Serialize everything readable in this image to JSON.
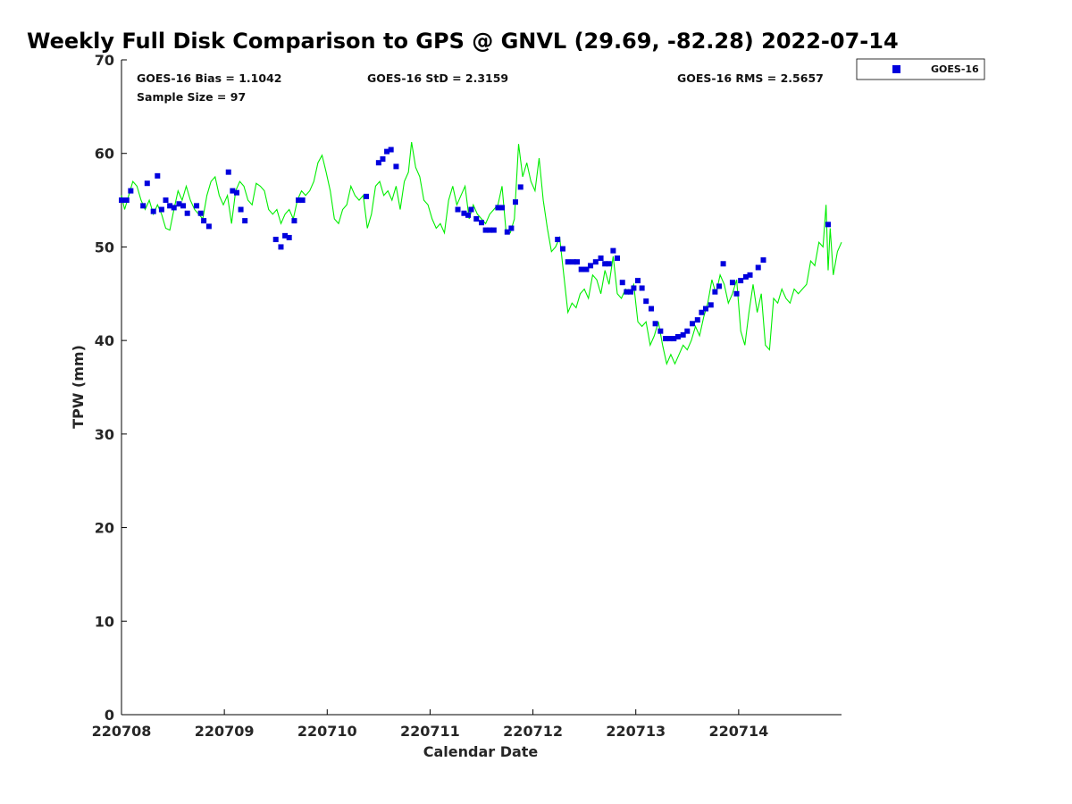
{
  "chart_data": {
    "type": "scatter",
    "title": "Weekly Full Disk Comparison to GPS @ GNVL (29.69, -82.28) 2022-07-14",
    "xlabel": "Calendar Date",
    "ylabel": "TPW (mm)",
    "xlim": [
      0,
      7
    ],
    "ylim": [
      0,
      70
    ],
    "x_ticks": [
      {
        "value": 0,
        "label": "220708"
      },
      {
        "value": 1,
        "label": "220709"
      },
      {
        "value": 2,
        "label": "220710"
      },
      {
        "value": 3,
        "label": "220711"
      },
      {
        "value": 4,
        "label": "220712"
      },
      {
        "value": 5,
        "label": "220713"
      },
      {
        "value": 6,
        "label": "220714"
      }
    ],
    "y_ticks": [
      0,
      10,
      20,
      30,
      40,
      50,
      60,
      70
    ],
    "grid": false,
    "legend": {
      "position": "outside-top-right",
      "entries": [
        {
          "name": "GOES-16",
          "color": "#0000dd",
          "marker": "square"
        }
      ]
    },
    "stats": {
      "bias": "GOES-16 Bias = 1.1042",
      "std": "GOES-16 StD = 2.3159",
      "rms": "GOES-16 RMS = 2.5657",
      "sample": "Sample Size = 97"
    },
    "series": [
      {
        "name": "GOES-16",
        "kind": "scatter",
        "color": "#0000dd",
        "points": [
          [
            0.0,
            55.0
          ],
          [
            0.05,
            55.0
          ],
          [
            0.09,
            56.0
          ],
          [
            0.21,
            54.4
          ],
          [
            0.25,
            56.8
          ],
          [
            0.31,
            53.8
          ],
          [
            0.35,
            57.6
          ],
          [
            0.39,
            54.0
          ],
          [
            0.43,
            55.0
          ],
          [
            0.47,
            54.4
          ],
          [
            0.51,
            54.2
          ],
          [
            0.56,
            54.6
          ],
          [
            0.6,
            54.4
          ],
          [
            0.64,
            53.6
          ],
          [
            0.73,
            54.4
          ],
          [
            0.77,
            53.6
          ],
          [
            0.8,
            52.8
          ],
          [
            0.85,
            52.2
          ],
          [
            1.04,
            58.0
          ],
          [
            1.08,
            56.0
          ],
          [
            1.12,
            55.8
          ],
          [
            1.16,
            54.0
          ],
          [
            1.2,
            52.8
          ],
          [
            1.5,
            50.8
          ],
          [
            1.55,
            50.0
          ],
          [
            1.59,
            51.2
          ],
          [
            1.63,
            51.0
          ],
          [
            1.68,
            52.8
          ],
          [
            1.72,
            55.0
          ],
          [
            1.76,
            55.0
          ],
          [
            2.38,
            55.4
          ],
          [
            2.5,
            59.0
          ],
          [
            2.54,
            59.4
          ],
          [
            2.58,
            60.2
          ],
          [
            2.62,
            60.4
          ],
          [
            2.67,
            58.6
          ],
          [
            3.27,
            54.0
          ],
          [
            3.33,
            53.6
          ],
          [
            3.37,
            53.4
          ],
          [
            3.4,
            54.0
          ],
          [
            3.45,
            53.0
          ],
          [
            3.5,
            52.6
          ],
          [
            3.54,
            51.8
          ],
          [
            3.58,
            51.8
          ],
          [
            3.62,
            51.8
          ],
          [
            3.66,
            54.2
          ],
          [
            3.7,
            54.2
          ],
          [
            3.75,
            51.6
          ],
          [
            3.79,
            52.0
          ],
          [
            3.83,
            54.8
          ],
          [
            3.88,
            56.4
          ],
          [
            4.24,
            50.8
          ],
          [
            4.29,
            49.8
          ],
          [
            4.34,
            48.4
          ],
          [
            4.39,
            48.4
          ],
          [
            4.43,
            48.4
          ],
          [
            4.47,
            47.6
          ],
          [
            4.52,
            47.6
          ],
          [
            4.56,
            48.0
          ],
          [
            4.61,
            48.4
          ],
          [
            4.66,
            48.8
          ],
          [
            4.7,
            48.2
          ],
          [
            4.74,
            48.2
          ],
          [
            4.78,
            49.6
          ],
          [
            4.82,
            48.8
          ],
          [
            4.87,
            46.2
          ],
          [
            4.91,
            45.2
          ],
          [
            4.95,
            45.2
          ],
          [
            4.98,
            45.6
          ],
          [
            5.02,
            46.4
          ],
          [
            5.06,
            45.6
          ],
          [
            5.1,
            44.2
          ],
          [
            5.15,
            43.4
          ],
          [
            5.19,
            41.8
          ],
          [
            5.24,
            41.0
          ],
          [
            5.29,
            40.2
          ],
          [
            5.33,
            40.2
          ],
          [
            5.37,
            40.2
          ],
          [
            5.41,
            40.4
          ],
          [
            5.46,
            40.6
          ],
          [
            5.5,
            41.0
          ],
          [
            5.55,
            41.8
          ],
          [
            5.6,
            42.2
          ],
          [
            5.64,
            43.0
          ],
          [
            5.68,
            43.4
          ],
          [
            5.73,
            43.8
          ],
          [
            5.77,
            45.2
          ],
          [
            5.81,
            45.8
          ],
          [
            5.85,
            48.2
          ],
          [
            5.94,
            46.2
          ],
          [
            5.98,
            45.0
          ],
          [
            6.02,
            46.4
          ],
          [
            6.07,
            46.8
          ],
          [
            6.11,
            47.0
          ],
          [
            6.19,
            47.8
          ],
          [
            6.24,
            48.6
          ],
          [
            6.87,
            52.4
          ]
        ]
      },
      {
        "name": "",
        "kind": "line",
        "color": "#00ee00",
        "points": [
          [
            0.0,
            55.5
          ],
          [
            0.03,
            54.0
          ],
          [
            0.07,
            55.5
          ],
          [
            0.11,
            57.0
          ],
          [
            0.15,
            56.5
          ],
          [
            0.19,
            55.0
          ],
          [
            0.23,
            54.0
          ],
          [
            0.27,
            55.0
          ],
          [
            0.31,
            53.5
          ],
          [
            0.35,
            54.5
          ],
          [
            0.39,
            53.5
          ],
          [
            0.43,
            52.0
          ],
          [
            0.47,
            51.8
          ],
          [
            0.51,
            54.0
          ],
          [
            0.55,
            56.0
          ],
          [
            0.59,
            55.0
          ],
          [
            0.63,
            56.5
          ],
          [
            0.67,
            55.0
          ],
          [
            0.71,
            54.0
          ],
          [
            0.75,
            53.5
          ],
          [
            0.79,
            53.0
          ],
          [
            0.83,
            55.5
          ],
          [
            0.87,
            57.0
          ],
          [
            0.91,
            57.5
          ],
          [
            0.95,
            55.5
          ],
          [
            0.99,
            54.5
          ],
          [
            1.03,
            55.5
          ],
          [
            1.07,
            52.5
          ],
          [
            1.11,
            56.0
          ],
          [
            1.15,
            57.0
          ],
          [
            1.19,
            56.5
          ],
          [
            1.23,
            55.0
          ],
          [
            1.27,
            54.5
          ],
          [
            1.31,
            56.8
          ],
          [
            1.35,
            56.5
          ],
          [
            1.39,
            56.0
          ],
          [
            1.43,
            54.0
          ],
          [
            1.47,
            53.5
          ],
          [
            1.51,
            54.0
          ],
          [
            1.55,
            52.5
          ],
          [
            1.59,
            53.5
          ],
          [
            1.63,
            54.0
          ],
          [
            1.67,
            53.0
          ],
          [
            1.71,
            55.0
          ],
          [
            1.75,
            56.0
          ],
          [
            1.79,
            55.5
          ],
          [
            1.83,
            56.0
          ],
          [
            1.87,
            57.0
          ],
          [
            1.91,
            59.0
          ],
          [
            1.95,
            59.8
          ],
          [
            1.99,
            58.0
          ],
          [
            2.03,
            56.0
          ],
          [
            2.07,
            53.0
          ],
          [
            2.11,
            52.5
          ],
          [
            2.15,
            54.0
          ],
          [
            2.19,
            54.5
          ],
          [
            2.23,
            56.5
          ],
          [
            2.27,
            55.5
          ],
          [
            2.31,
            55.0
          ],
          [
            2.35,
            55.5
          ],
          [
            2.39,
            52.0
          ],
          [
            2.43,
            53.5
          ],
          [
            2.47,
            56.5
          ],
          [
            2.51,
            57.0
          ],
          [
            2.55,
            55.5
          ],
          [
            2.59,
            56.0
          ],
          [
            2.63,
            55.0
          ],
          [
            2.67,
            56.5
          ],
          [
            2.71,
            54.0
          ],
          [
            2.75,
            57.0
          ],
          [
            2.79,
            58.0
          ],
          [
            2.82,
            61.2
          ],
          [
            2.86,
            58.5
          ],
          [
            2.9,
            57.5
          ],
          [
            2.94,
            55.0
          ],
          [
            2.98,
            54.5
          ],
          [
            3.02,
            53.0
          ],
          [
            3.06,
            52.0
          ],
          [
            3.1,
            52.5
          ],
          [
            3.14,
            51.5
          ],
          [
            3.18,
            55.0
          ],
          [
            3.22,
            56.5
          ],
          [
            3.26,
            54.5
          ],
          [
            3.3,
            55.5
          ],
          [
            3.34,
            56.5
          ],
          [
            3.38,
            53.0
          ],
          [
            3.42,
            54.5
          ],
          [
            3.46,
            53.5
          ],
          [
            3.5,
            53.0
          ],
          [
            3.54,
            52.5
          ],
          [
            3.58,
            53.5
          ],
          [
            3.62,
            54.0
          ],
          [
            3.66,
            54.5
          ],
          [
            3.7,
            56.5
          ],
          [
            3.74,
            51.5
          ],
          [
            3.78,
            51.5
          ],
          [
            3.82,
            53.0
          ],
          [
            3.86,
            61.0
          ],
          [
            3.9,
            57.5
          ],
          [
            3.94,
            59.0
          ],
          [
            3.98,
            57.0
          ],
          [
            4.02,
            56.0
          ],
          [
            4.06,
            59.5
          ],
          [
            4.1,
            55.0
          ],
          [
            4.14,
            52.0
          ],
          [
            4.18,
            49.5
          ],
          [
            4.22,
            50.0
          ],
          [
            4.26,
            51.0
          ],
          [
            4.3,
            47.0
          ],
          [
            4.34,
            43.0
          ],
          [
            4.38,
            44.0
          ],
          [
            4.42,
            43.5
          ],
          [
            4.46,
            45.0
          ],
          [
            4.5,
            45.5
          ],
          [
            4.54,
            44.5
          ],
          [
            4.58,
            47.0
          ],
          [
            4.62,
            46.5
          ],
          [
            4.66,
            45.0
          ],
          [
            4.7,
            47.5
          ],
          [
            4.74,
            46.0
          ],
          [
            4.78,
            49.0
          ],
          [
            4.82,
            45.0
          ],
          [
            4.86,
            44.5
          ],
          [
            4.9,
            45.5
          ],
          [
            4.94,
            45.0
          ],
          [
            4.98,
            46.0
          ],
          [
            5.02,
            42.0
          ],
          [
            5.06,
            41.5
          ],
          [
            5.1,
            42.0
          ],
          [
            5.14,
            39.5
          ],
          [
            5.18,
            40.5
          ],
          [
            5.22,
            42.0
          ],
          [
            5.26,
            39.5
          ],
          [
            5.3,
            37.5
          ],
          [
            5.34,
            38.5
          ],
          [
            5.38,
            37.5
          ],
          [
            5.42,
            38.5
          ],
          [
            5.46,
            39.5
          ],
          [
            5.5,
            39.0
          ],
          [
            5.54,
            40.0
          ],
          [
            5.58,
            41.5
          ],
          [
            5.62,
            40.5
          ],
          [
            5.66,
            42.5
          ],
          [
            5.7,
            44.0
          ],
          [
            5.74,
            46.5
          ],
          [
            5.78,
            45.0
          ],
          [
            5.82,
            47.0
          ],
          [
            5.86,
            46.0
          ],
          [
            5.9,
            44.0
          ],
          [
            5.94,
            45.0
          ],
          [
            5.98,
            46.5
          ],
          [
            6.02,
            41.0
          ],
          [
            6.06,
            39.5
          ],
          [
            6.1,
            43.0
          ],
          [
            6.14,
            46.0
          ],
          [
            6.18,
            43.0
          ],
          [
            6.22,
            45.0
          ],
          [
            6.26,
            39.5
          ],
          [
            6.3,
            39.0
          ],
          [
            6.34,
            44.5
          ],
          [
            6.38,
            44.0
          ],
          [
            6.42,
            45.5
          ],
          [
            6.46,
            44.5
          ],
          [
            6.5,
            44.0
          ],
          [
            6.54,
            45.5
          ],
          [
            6.58,
            45.0
          ],
          [
            6.62,
            45.5
          ],
          [
            6.66,
            46.0
          ],
          [
            6.7,
            48.5
          ],
          [
            6.74,
            48.0
          ],
          [
            6.78,
            50.5
          ],
          [
            6.82,
            50.0
          ],
          [
            6.85,
            54.5
          ],
          [
            6.87,
            47.5
          ],
          [
            6.89,
            52.0
          ],
          [
            6.92,
            47.0
          ],
          [
            6.96,
            49.5
          ],
          [
            7.0,
            50.5
          ]
        ]
      }
    ]
  }
}
